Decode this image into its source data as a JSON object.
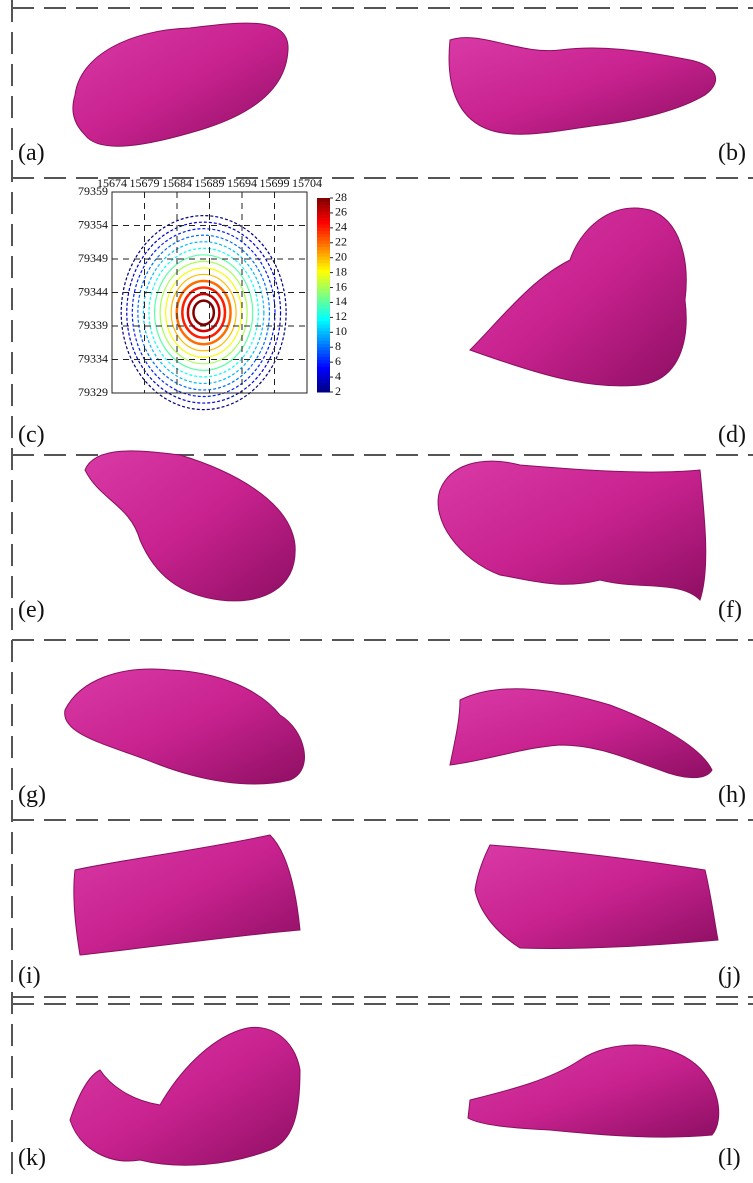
{
  "panels": {
    "labels": [
      "(a)",
      "(b)",
      "(c)",
      "(d)",
      "(e)",
      "(f)",
      "(g)",
      "(h)",
      "(i)",
      "(j)",
      "(k)",
      "(l)"
    ]
  },
  "chart_data": {
    "type": "contour",
    "xlim": [
      15674,
      15704
    ],
    "xticks": [
      15674,
      15679,
      15684,
      15689,
      15694,
      15699,
      15704
    ],
    "ylim": [
      79329,
      79359
    ],
    "yticks": [
      79359,
      79354,
      79349,
      79344,
      79339,
      79334,
      79329
    ],
    "grid": true,
    "colorbar": {
      "lim": [
        2,
        28
      ],
      "ticks": [
        28,
        26,
        24,
        22,
        20,
        18,
        16,
        14,
        12,
        10,
        8,
        6,
        4,
        2
      ]
    }
  }
}
